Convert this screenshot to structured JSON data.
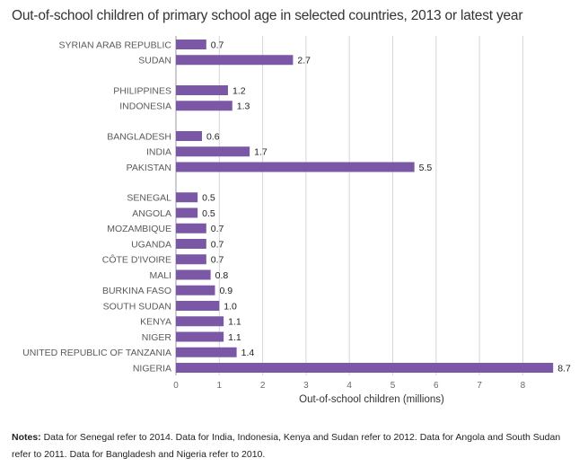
{
  "chart_data": {
    "type": "bar",
    "orientation": "horizontal",
    "title": "Out-of-school children of primary school age in selected countries, 2013 or latest year",
    "xlabel": "Out-of-school children (millions)",
    "ylabel": "",
    "xlim": [
      0,
      9
    ],
    "x_ticks": [
      "0",
      "1",
      "2",
      "3",
      "4",
      "5",
      "6",
      "7",
      "8"
    ],
    "grid": "vertical",
    "bar_color": "#7b58a6",
    "groups": [
      {
        "categories": [
          "SYRIAN ARAB REPUBLIC",
          "SUDAN"
        ],
        "values": [
          0.7,
          2.7
        ],
        "labels": [
          "0.7",
          "2.7"
        ]
      },
      {
        "categories": [
          "PHILIPPINES",
          "INDONESIA"
        ],
        "values": [
          1.2,
          1.3
        ],
        "labels": [
          "1.2",
          "1.3"
        ]
      },
      {
        "categories": [
          "BANGLADESH",
          "INDIA",
          "PAKISTAN"
        ],
        "values": [
          0.6,
          1.7,
          5.5
        ],
        "labels": [
          "0.6",
          "1.7",
          "5.5"
        ]
      },
      {
        "categories": [
          "SENEGAL",
          "ANGOLA",
          "MOZAMBIQUE",
          "UGANDA",
          "CÔTE D'IVOIRE",
          "MALI",
          "BURKINA FASO",
          "SOUTH SUDAN",
          "KENYA",
          "NIGER",
          "UNITED REPUBLIC OF TANZANIA",
          "NIGERIA"
        ],
        "values": [
          0.5,
          0.5,
          0.7,
          0.7,
          0.7,
          0.8,
          0.9,
          1.0,
          1.1,
          1.1,
          1.4,
          8.7
        ],
        "labels": [
          "0.5",
          "0.5",
          "0.7",
          "0.7",
          "0.7",
          "0.8",
          "0.9",
          "1.0",
          "1.1",
          "1.1",
          "1.4",
          "8.7"
        ]
      }
    ]
  },
  "notes": {
    "label": "Notes:",
    "text": " Data for Senegal refer to 2014. Data for India, Indonesia, Kenya and Sudan refer to 2012. Data for Angola and South Sudan refer to 2011. Data for Bangladesh and Nigeria refer to 2010."
  }
}
